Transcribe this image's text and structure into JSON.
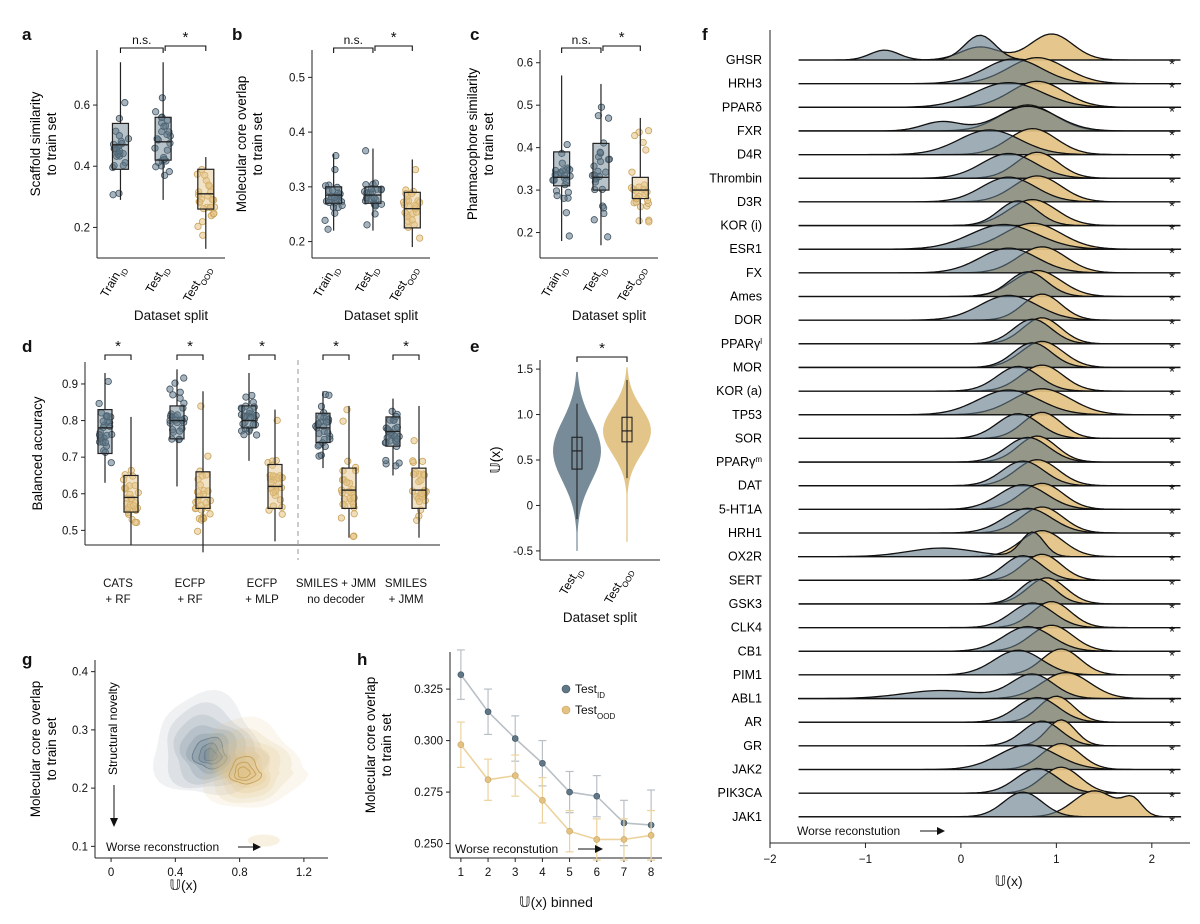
{
  "colors": {
    "id": "#5f7787",
    "ood": "#e3c283",
    "ood_stroke": "#c9a25a",
    "id_fill": "#8c9ca8"
  },
  "chart_data": [
    {
      "panel": "a",
      "type": "box",
      "ylabel": [
        "Scaffold similarity",
        "to train set"
      ],
      "xlabel": "Dataset split",
      "ylim": [
        0.1,
        0.78
      ],
      "yticks": [
        0.2,
        0.4,
        0.6
      ],
      "categories": [
        [
          "Train",
          "ID"
        ],
        [
          "Test",
          "ID"
        ],
        [
          "Test",
          "OOD"
        ]
      ],
      "groups": [
        {
          "q1": 0.39,
          "median": 0.47,
          "q3": 0.54,
          "whisker_low": 0.29,
          "whisker_high": 0.74,
          "color": "id"
        },
        {
          "q1": 0.42,
          "median": 0.48,
          "q3": 0.56,
          "whisker_low": 0.29,
          "whisker_high": 0.74,
          "color": "id"
        },
        {
          "q1": 0.26,
          "median": 0.31,
          "q3": 0.39,
          "whisker_low": 0.13,
          "whisker_high": 0.43,
          "color": "ood"
        }
      ],
      "brackets": [
        {
          "from": 0,
          "to": 1,
          "label": "n.s."
        },
        {
          "from": 1,
          "to": 2,
          "label": "*"
        }
      ]
    },
    {
      "panel": "b",
      "type": "box",
      "ylabel": [
        "Molecular core overlap",
        "to train set"
      ],
      "xlabel": "Dataset split",
      "ylim": [
        0.17,
        0.55
      ],
      "yticks": [
        0.2,
        0.3,
        0.4,
        0.5
      ],
      "categories": [
        [
          "Train",
          "ID"
        ],
        [
          "Test",
          "ID"
        ],
        [
          "Test",
          "OOD"
        ]
      ],
      "groups": [
        {
          "q1": 0.27,
          "median": 0.285,
          "q3": 0.3,
          "whisker_low": 0.22,
          "whisker_high": 0.36,
          "color": "id"
        },
        {
          "q1": 0.27,
          "median": 0.285,
          "q3": 0.3,
          "whisker_low": 0.22,
          "whisker_high": 0.37,
          "color": "id"
        },
        {
          "q1": 0.225,
          "median": 0.26,
          "q3": 0.29,
          "whisker_low": 0.19,
          "whisker_high": 0.35,
          "color": "ood"
        }
      ],
      "brackets": [
        {
          "from": 0,
          "to": 1,
          "label": "n.s."
        },
        {
          "from": 1,
          "to": 2,
          "label": "*"
        }
      ]
    },
    {
      "panel": "c",
      "type": "box",
      "ylabel": [
        "Pharmacophore similarity",
        "to train set"
      ],
      "xlabel": "Dataset split",
      "ylim": [
        0.14,
        0.63
      ],
      "yticks": [
        0.2,
        0.3,
        0.4,
        0.5,
        0.6
      ],
      "categories": [
        [
          "Train",
          "ID"
        ],
        [
          "Test",
          "ID"
        ],
        [
          "Test",
          "OOD"
        ]
      ],
      "groups": [
        {
          "q1": 0.31,
          "median": 0.33,
          "q3": 0.39,
          "whisker_low": 0.18,
          "whisker_high": 0.57,
          "color": "id"
        },
        {
          "q1": 0.3,
          "median": 0.33,
          "q3": 0.41,
          "whisker_low": 0.17,
          "whisker_high": 0.55,
          "color": "id"
        },
        {
          "q1": 0.28,
          "median": 0.3,
          "q3": 0.33,
          "whisker_low": 0.22,
          "whisker_high": 0.47,
          "color": "ood"
        }
      ],
      "brackets": [
        {
          "from": 0,
          "to": 1,
          "label": "n.s."
        },
        {
          "from": 1,
          "to": 2,
          "label": "*"
        }
      ]
    },
    {
      "panel": "d",
      "type": "box",
      "ylabel": [
        "Balanced accuracy"
      ],
      "ylim": [
        0.46,
        0.96
      ],
      "yticks": [
        0.5,
        0.6,
        0.7,
        0.8,
        0.9
      ],
      "categories": [
        [
          "CATS",
          "+ RF"
        ],
        [
          "ECFP",
          "+ RF"
        ],
        [
          "ECFP",
          "+ MLP"
        ],
        [
          "SMILES + JMM",
          "no decoder"
        ],
        [
          "SMILES",
          "+ JMM"
        ]
      ],
      "groups": [
        {
          "id": {
            "q1": 0.71,
            "median": 0.78,
            "q3": 0.83,
            "whisker_low": 0.63,
            "whisker_high": 0.93
          },
          "ood": {
            "q1": 0.55,
            "median": 0.59,
            "q3": 0.65,
            "whisker_low": 0.46,
            "whisker_high": 0.81
          }
        },
        {
          "id": {
            "q1": 0.75,
            "median": 0.8,
            "q3": 0.84,
            "whisker_low": 0.62,
            "whisker_high": 0.94
          },
          "ood": {
            "q1": 0.56,
            "median": 0.59,
            "q3": 0.66,
            "whisker_low": 0.44,
            "whisker_high": 0.88
          }
        },
        {
          "id": {
            "q1": 0.78,
            "median": 0.8,
            "q3": 0.84,
            "whisker_low": 0.69,
            "whisker_high": 0.93
          },
          "ood": {
            "q1": 0.56,
            "median": 0.62,
            "q3": 0.68,
            "whisker_low": 0.47,
            "whisker_high": 0.83
          }
        },
        {
          "id": {
            "q1": 0.74,
            "median": 0.78,
            "q3": 0.82,
            "whisker_low": 0.67,
            "whisker_high": 0.88
          },
          "ood": {
            "q1": 0.56,
            "median": 0.61,
            "q3": 0.67,
            "whisker_low": 0.48,
            "whisker_high": 0.84
          }
        },
        {
          "id": {
            "q1": 0.73,
            "median": 0.77,
            "q3": 0.81,
            "whisker_low": 0.65,
            "whisker_high": 0.86
          },
          "ood": {
            "q1": 0.56,
            "median": 0.61,
            "q3": 0.67,
            "whisker_low": 0.48,
            "whisker_high": 0.84
          }
        }
      ],
      "brackets_label": "*"
    },
    {
      "panel": "e",
      "type": "violin",
      "ylabel": [
        "𝕌(x)"
      ],
      "xlabel": "Dataset split",
      "ylim": [
        -0.6,
        1.6
      ],
      "yticks": [
        -0.5,
        0,
        0.5,
        1.0,
        1.5
      ],
      "categories": [
        [
          "Test",
          "ID"
        ],
        [
          "Test",
          "OOD"
        ]
      ],
      "groups": [
        {
          "q1": 0.4,
          "median": 0.6,
          "q3": 0.75,
          "whisker_low": -0.15,
          "whisker_high": 1.12,
          "min": -0.5,
          "max": 1.47,
          "color": "id"
        },
        {
          "q1": 0.7,
          "median": 0.82,
          "q3": 0.97,
          "whisker_low": 0.3,
          "whisker_high": 1.38,
          "min": -0.4,
          "max": 1.52,
          "color": "ood"
        }
      ],
      "bracket_label": "*"
    },
    {
      "panel": "g",
      "type": "density",
      "ylabel": [
        "Molecular core overlap",
        "to train set"
      ],
      "xlabel": "𝕌(x)",
      "xlim": [
        -0.1,
        1.35
      ],
      "ylim": [
        0.08,
        0.42
      ],
      "xticks": [
        0,
        0.4,
        0.8,
        1.2
      ],
      "yticks": [
        0.1,
        0.2,
        0.3,
        0.4
      ],
      "annotations": {
        "vertical": "Structural novelty",
        "horizontal": "Worse reconstruction"
      },
      "densities": [
        {
          "color": "id",
          "center": [
            0.62,
            0.255
          ],
          "spread": [
            0.33,
            0.09
          ]
        },
        {
          "color": "ood",
          "center": [
            0.82,
            0.225
          ],
          "spread": [
            0.3,
            0.08
          ]
        }
      ]
    },
    {
      "panel": "h",
      "type": "line",
      "ylabel": [
        "Molecular core overlap",
        "to train set"
      ],
      "xlabel": "𝕌(x) binned",
      "xlim": [
        0.6,
        8.4
      ],
      "ylim": [
        0.243,
        0.343
      ],
      "xticks": [
        1,
        2,
        3,
        4,
        5,
        6,
        7,
        8
      ],
      "yticks": [
        0.25,
        0.275,
        0.3,
        0.325
      ],
      "annotation": "Worse reconstution",
      "x": [
        1,
        2,
        3,
        4,
        5,
        6,
        7,
        8
      ],
      "series": [
        {
          "name": [
            "Test",
            "ID"
          ],
          "color": "id",
          "values": [
            0.332,
            0.314,
            0.301,
            0.289,
            0.275,
            0.273,
            0.26,
            0.259
          ],
          "err": [
            0.012,
            0.011,
            0.011,
            0.011,
            0.01,
            0.01,
            0.011,
            0.017
          ]
        },
        {
          "name": [
            "Test",
            "OOD"
          ],
          "color": "ood",
          "values": [
            0.298,
            0.281,
            0.283,
            0.271,
            0.256,
            0.252,
            0.252,
            0.254
          ],
          "err": [
            0.011,
            0.01,
            0.01,
            0.011,
            0.01,
            0.01,
            0.01,
            0.012
          ]
        }
      ]
    },
    {
      "panel": "f",
      "type": "ridgeline",
      "xlabel": "𝕌(x)",
      "xlim": [
        -2,
        2.4
      ],
      "xticks": [
        -2,
        -1,
        0,
        1,
        2
      ],
      "annotation": "Worse reconstution",
      "significance": "*",
      "targets": [
        {
          "name": "GHSR",
          "id": [
            [
              0.2,
              0.16,
              1.0
            ],
            [
              -0.8,
              0.15,
              0.4
            ]
          ],
          "ood": [
            [
              0.95,
              0.22,
              1.0
            ],
            [
              0.2,
              0.2,
              0.5
            ]
          ]
        },
        {
          "name": "HRH3",
          "id": [
            [
              0.55,
              0.3,
              1.0
            ]
          ],
          "ood": [
            [
              0.8,
              0.3,
              1.0
            ]
          ]
        },
        {
          "name": "PPARδ",
          "id": [
            [
              0.5,
              0.35,
              0.7
            ]
          ],
          "ood": [
            [
              0.8,
              0.28,
              1.0
            ]
          ]
        },
        {
          "name": "FXR",
          "id": [
            [
              0.7,
              0.3,
              0.8
            ],
            [
              -0.2,
              0.2,
              0.3
            ]
          ],
          "ood": [
            [
              0.7,
              0.28,
              1.0
            ]
          ]
        },
        {
          "name": "D4R",
          "id": [
            [
              0.3,
              0.32,
              0.9
            ]
          ],
          "ood": [
            [
              0.75,
              0.25,
              1.0
            ]
          ]
        },
        {
          "name": "Thrombin",
          "id": [
            [
              0.5,
              0.28,
              0.9
            ]
          ],
          "ood": [
            [
              0.8,
              0.22,
              1.0
            ]
          ]
        },
        {
          "name": "D3R",
          "id": [
            [
              0.5,
              0.28,
              0.9
            ]
          ],
          "ood": [
            [
              0.8,
              0.25,
              1.0
            ]
          ]
        },
        {
          "name": "KOR (i)",
          "id": [
            [
              0.6,
              0.2,
              1.0
            ]
          ],
          "ood": [
            [
              0.75,
              0.25,
              1.0
            ]
          ]
        },
        {
          "name": "ESR1",
          "id": [
            [
              0.45,
              0.35,
              0.5
            ]
          ],
          "ood": [
            [
              0.75,
              0.3,
              1.0
            ]
          ]
        },
        {
          "name": "FX",
          "id": [
            [
              0.5,
              0.3,
              0.8
            ]
          ],
          "ood": [
            [
              0.85,
              0.25,
              1.0
            ]
          ]
        },
        {
          "name": "Ames",
          "id": [
            [
              0.7,
              0.2,
              1.0
            ]
          ],
          "ood": [
            [
              0.8,
              0.25,
              1.0
            ]
          ]
        },
        {
          "name": "DOR",
          "id": [
            [
              0.5,
              0.3,
              0.9
            ]
          ],
          "ood": [
            [
              0.85,
              0.2,
              1.0
            ]
          ]
        },
        {
          "name": "PPARγ",
          "sup": "l",
          "id": [
            [
              0.75,
              0.2,
              1.0
            ]
          ],
          "ood": [
            [
              0.85,
              0.2,
              1.0
            ]
          ]
        },
        {
          "name": "MOR",
          "id": [
            [
              0.75,
              0.2,
              0.9
            ]
          ],
          "ood": [
            [
              0.85,
              0.22,
              1.0
            ]
          ]
        },
        {
          "name": "KOR (a)",
          "id": [
            [
              0.6,
              0.22,
              0.9
            ]
          ],
          "ood": [
            [
              0.85,
              0.22,
              1.0
            ]
          ]
        },
        {
          "name": "TP53",
          "id": [
            [
              0.5,
              0.32,
              0.8
            ]
          ],
          "ood": [
            [
              0.85,
              0.3,
              1.0
            ]
          ]
        },
        {
          "name": "SOR",
          "id": [
            [
              0.6,
              0.22,
              1.0
            ]
          ],
          "ood": [
            [
              0.85,
              0.2,
              1.0
            ]
          ]
        },
        {
          "name": "PPARγ",
          "sup": "m",
          "id": [
            [
              0.7,
              0.22,
              1.0
            ]
          ],
          "ood": [
            [
              0.8,
              0.2,
              1.0
            ]
          ]
        },
        {
          "name": "DAT",
          "id": [
            [
              0.65,
              0.22,
              1.0
            ]
          ],
          "ood": [
            [
              0.8,
              0.22,
              1.0
            ]
          ]
        },
        {
          "name": "5-HT1A",
          "id": [
            [
              0.65,
              0.25,
              1.0
            ]
          ],
          "ood": [
            [
              0.85,
              0.22,
              1.0
            ]
          ]
        },
        {
          "name": "HRH1",
          "id": [
            [
              0.7,
              0.25,
              1.0
            ]
          ],
          "ood": [
            [
              0.85,
              0.22,
              1.0
            ]
          ]
        },
        {
          "name": "OX2R",
          "id": [
            [
              0.75,
              0.12,
              1.0
            ],
            [
              -0.2,
              0.35,
              0.35
            ]
          ],
          "ood": [
            [
              0.85,
              0.22,
              1.0
            ]
          ]
        },
        {
          "name": "SERT",
          "id": [
            [
              0.65,
              0.2,
              1.0
            ]
          ],
          "ood": [
            [
              0.85,
              0.2,
              1.0
            ]
          ]
        },
        {
          "name": "GSK3",
          "id": [
            [
              0.8,
              0.18,
              1.0
            ]
          ],
          "ood": [
            [
              0.9,
              0.2,
              1.0
            ]
          ]
        },
        {
          "name": "CLK4",
          "id": [
            [
              0.75,
              0.22,
              1.0
            ]
          ],
          "ood": [
            [
              0.95,
              0.2,
              1.0
            ]
          ]
        },
        {
          "name": "CB1",
          "id": [
            [
              0.7,
              0.25,
              0.9
            ]
          ],
          "ood": [
            [
              0.95,
              0.22,
              1.0
            ]
          ]
        },
        {
          "name": "PIM1",
          "id": [
            [
              0.6,
              0.25,
              0.9
            ]
          ],
          "ood": [
            [
              1.05,
              0.2,
              1.0
            ]
          ]
        },
        {
          "name": "ABL1",
          "id": [
            [
              0.75,
              0.22,
              0.9
            ],
            [
              -0.2,
              0.4,
              0.3
            ]
          ],
          "ood": [
            [
              1.1,
              0.25,
              1.0
            ]
          ]
        },
        {
          "name": "AR",
          "id": [
            [
              0.8,
              0.22,
              1.0
            ]
          ],
          "ood": [
            [
              1.0,
              0.18,
              1.0
            ]
          ]
        },
        {
          "name": "GR",
          "id": [
            [
              0.85,
              0.2,
              1.0
            ]
          ],
          "ood": [
            [
              1.05,
              0.15,
              1.0
            ]
          ]
        },
        {
          "name": "JAK2",
          "id": [
            [
              0.7,
              0.3,
              0.9
            ]
          ],
          "ood": [
            [
              1.05,
              0.2,
              1.0
            ]
          ]
        },
        {
          "name": "PIK3CA",
          "id": [
            [
              0.8,
              0.22,
              1.0
            ]
          ],
          "ood": [
            [
              1.05,
              0.2,
              1.0
            ]
          ]
        },
        {
          "name": "JAK1",
          "id": [
            [
              0.65,
              0.2,
              1.0
            ]
          ],
          "ood": [
            [
              1.4,
              0.22,
              1.0
            ],
            [
              1.8,
              0.1,
              0.6
            ]
          ]
        }
      ]
    }
  ]
}
